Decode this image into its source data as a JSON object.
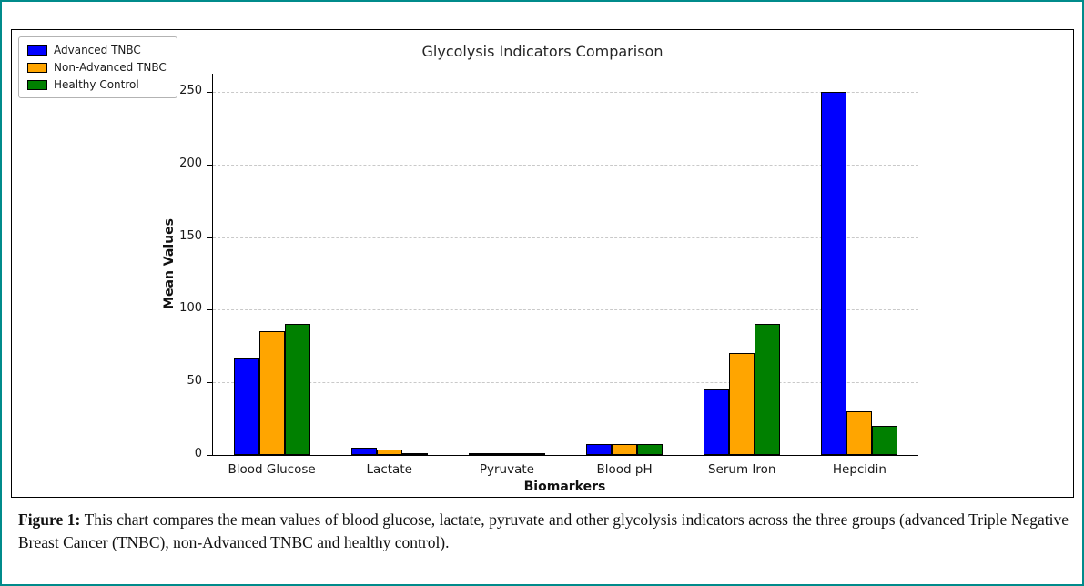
{
  "page": {
    "border_color": "#008b8b",
    "background": "#ffffff"
  },
  "caption": {
    "label": "Figure 1:",
    "text": " This chart compares the mean values of blood glucose, lactate, pyruvate and other glycolysis indicators across the three groups (advanced Triple Negative Breast Cancer (TNBC), non-Advanced TNBC and healthy control)."
  },
  "chart_data": {
    "type": "bar",
    "title": "Glycolysis Indicators Comparison",
    "xlabel": "Biomarkers",
    "ylabel": "Mean Values",
    "categories": [
      "Blood Glucose",
      "Lactate",
      "Pyruvate",
      "Blood pH",
      "Serum Iron",
      "Hepcidin"
    ],
    "series": [
      {
        "name": "Advanced TNBC",
        "color": "#0000ff",
        "values": [
          67,
          5,
          0.5,
          7.3,
          45,
          250
        ]
      },
      {
        "name": "Non-Advanced TNBC",
        "color": "#ffa500",
        "values": [
          85,
          4,
          0.4,
          7.3,
          70,
          30
        ]
      },
      {
        "name": "Healthy Control",
        "color": "#008000",
        "values": [
          90,
          1.5,
          0.2,
          7.4,
          90,
          20
        ]
      }
    ],
    "yticks": [
      0,
      50,
      100,
      150,
      200,
      250
    ],
    "ylim": [
      0,
      262.5
    ],
    "grid": true,
    "grid_style": "dashed",
    "legend_position": "upper left"
  }
}
